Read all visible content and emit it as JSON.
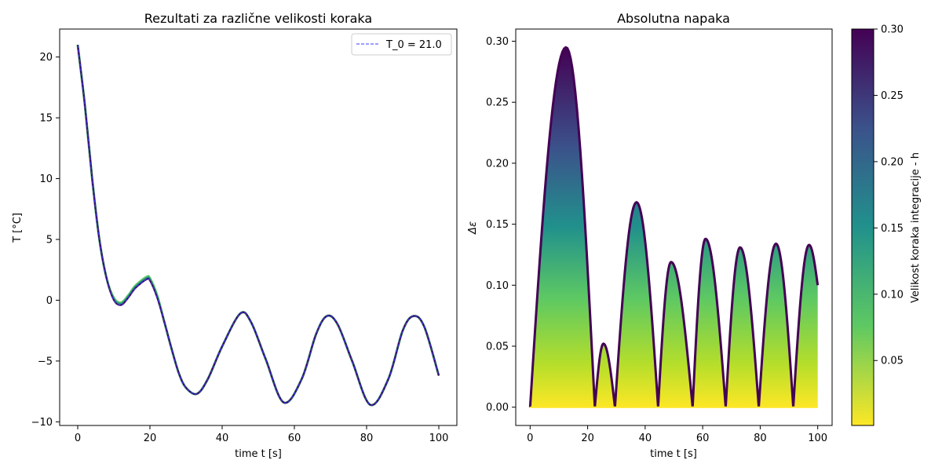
{
  "chart_data": [
    {
      "type": "line",
      "title": "Rezultati za različne velikosti koraka",
      "xlabel": "time t [s]",
      "ylabel": "T [°C]",
      "xlim": [
        -5,
        105
      ],
      "ylim": [
        -10.3,
        22.3
      ],
      "xticks": [
        0,
        20,
        40,
        60,
        80,
        100
      ],
      "yticks": [
        -10,
        -5,
        0,
        5,
        10,
        15,
        20
      ],
      "legend": {
        "placement": "upper right",
        "entries": [
          "T_0 = 21.0"
        ]
      },
      "grid": false,
      "colormap": "viridis",
      "series": [
        {
          "name": "T_0 = 21.0",
          "style": "dashed",
          "color": "#3b3bff",
          "x": [
            0,
            2,
            4,
            6,
            8,
            10,
            12,
            14,
            16,
            19,
            20,
            22,
            24,
            26,
            28,
            30,
            33,
            36,
            40,
            45,
            48,
            52,
            57,
            62,
            66,
            69,
            72,
            76,
            81,
            86,
            90,
            93,
            96,
            100
          ],
          "y": [
            21.0,
            16.0,
            10.0,
            5.0,
            1.8,
            0.0,
            -0.4,
            0.2,
            1.0,
            1.7,
            1.6,
            0.2,
            -1.8,
            -4.0,
            -6.0,
            -7.2,
            -7.7,
            -6.5,
            -3.8,
            -1.1,
            -1.8,
            -4.8,
            -8.4,
            -6.5,
            -2.8,
            -1.3,
            -2.0,
            -5.0,
            -8.6,
            -6.5,
            -2.5,
            -1.3,
            -2.2,
            -6.2
          ]
        }
      ]
    },
    {
      "type": "area",
      "title": "Absolutna napaka",
      "xlabel": "time t [s]",
      "ylabel": "Δε",
      "xlim": [
        -5,
        105
      ],
      "ylim": [
        -0.015,
        0.31
      ],
      "xticks": [
        0,
        20,
        40,
        60,
        80,
        100
      ],
      "yticks": [
        0.0,
        0.05,
        0.1,
        0.15,
        0.2,
        0.25,
        0.3
      ],
      "grid": false,
      "colormap": "viridis",
      "colorscale": "reversed",
      "series": [
        {
          "x": [
            0,
            6,
            12.5,
            19,
            22.5,
            25.5,
            29.5,
            33,
            37,
            41,
            44.5,
            49,
            53.5,
            56.5,
            61,
            65,
            68,
            73,
            77,
            79.5,
            85.5,
            89.5,
            91.5,
            97,
            100
          ],
          "y": [
            0.0,
            0.16,
            0.295,
            0.14,
            0.0,
            0.052,
            0.0,
            0.09,
            0.168,
            0.07,
            0.0,
            0.119,
            0.02,
            0.0,
            0.138,
            0.04,
            0.0,
            0.131,
            0.03,
            0.0,
            0.134,
            0.03,
            0.0,
            0.133,
            0.1
          ]
        }
      ],
      "colorbar": {
        "label": "Velikost koraka integracije - h",
        "range": [
          0.001,
          0.3
        ],
        "ticks": [
          0.05,
          0.1,
          0.15,
          0.2,
          0.25,
          0.3
        ]
      }
    }
  ]
}
